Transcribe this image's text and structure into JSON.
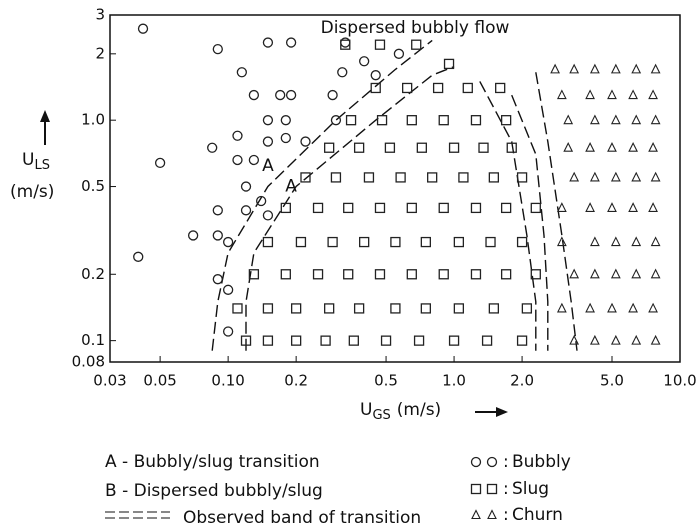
{
  "chart_data": {
    "type": "scatter",
    "title": "Dispersed  bubbly flow",
    "x_label": {
      "main": "U",
      "sub": "GS",
      "unit": "(m/s)"
    },
    "y_label": {
      "main": "U",
      "sub": "LS",
      "unit": "(m/s)"
    },
    "log_x": true,
    "log_y": true,
    "xlim": [
      0.03,
      10
    ],
    "ylim": [
      0.08,
      3
    ],
    "xticks": [
      0.03,
      0.05,
      {
        "value": 0.1,
        "label": "0.10"
      },
      0.2,
      0.5,
      {
        "value": 1,
        "label": "1.0"
      },
      {
        "value": 2,
        "label": "2.0"
      },
      {
        "value": 5,
        "label": "5.0"
      },
      {
        "value": 10,
        "label": "10.0"
      }
    ],
    "yticks": [
      {
        "value": 0.08,
        "label": "0.08"
      },
      0.1,
      0.2,
      0.5,
      {
        "value": 1,
        "label": "1.0"
      },
      2,
      3
    ],
    "legend_separator": ":",
    "series": [
      {
        "name": "Bubbly",
        "marker": "circle",
        "color": "#222",
        "x": [
          0.042,
          0.05,
          0.04,
          0.09,
          0.085,
          0.115,
          0.15,
          0.13,
          0.11,
          0.11,
          0.09,
          0.07,
          0.09,
          0.19,
          0.33,
          0.17,
          0.19,
          0.18,
          0.15,
          0.18,
          0.15,
          0.29,
          0.32,
          0.4,
          0.45,
          0.13,
          0.12,
          0.12,
          0.14,
          0.1,
          0.22,
          0.3,
          0.57,
          0.1,
          0.09,
          0.1,
          0.15
        ],
        "values": [
          2.6,
          0.64,
          0.24,
          2.1,
          0.75,
          1.65,
          2.25,
          1.3,
          0.85,
          0.66,
          0.39,
          0.3,
          0.3,
          2.25,
          2.25,
          1.3,
          1.3,
          1.0,
          1.0,
          0.83,
          0.8,
          1.3,
          1.65,
          1.85,
          1.6,
          0.66,
          0.5,
          0.39,
          0.43,
          0.28,
          0.8,
          1.0,
          2.0,
          0.11,
          0.19,
          0.17,
          0.37
        ]
      },
      {
        "name": "Slug",
        "marker": "square",
        "color": "#222",
        "x": [
          0.12,
          0.15,
          0.2,
          0.27,
          0.36,
          0.5,
          0.7,
          1.0,
          1.4,
          2.0,
          0.11,
          0.15,
          0.2,
          0.28,
          0.38,
          0.55,
          0.75,
          1.05,
          1.5,
          2.1,
          0.13,
          0.18,
          0.25,
          0.34,
          0.47,
          0.65,
          0.9,
          1.25,
          1.7,
          2.3,
          0.15,
          0.21,
          0.29,
          0.4,
          0.55,
          0.75,
          1.05,
          1.45,
          2.0,
          0.18,
          0.25,
          0.34,
          0.47,
          0.65,
          0.9,
          1.25,
          1.7,
          2.3,
          0.22,
          0.3,
          0.42,
          0.58,
          0.8,
          1.1,
          1.5,
          2.0,
          0.28,
          0.38,
          0.52,
          0.72,
          1.0,
          1.35,
          1.8,
          0.35,
          0.48,
          0.65,
          0.9,
          1.25,
          1.7,
          0.45,
          0.62,
          0.85,
          1.15,
          1.6,
          0.33,
          0.47,
          0.68,
          0.95
        ],
        "values": [
          0.1,
          0.1,
          0.1,
          0.1,
          0.1,
          0.1,
          0.1,
          0.1,
          0.1,
          0.1,
          0.14,
          0.14,
          0.14,
          0.14,
          0.14,
          0.14,
          0.14,
          0.14,
          0.14,
          0.14,
          0.2,
          0.2,
          0.2,
          0.2,
          0.2,
          0.2,
          0.2,
          0.2,
          0.2,
          0.2,
          0.28,
          0.28,
          0.28,
          0.28,
          0.28,
          0.28,
          0.28,
          0.28,
          0.28,
          0.4,
          0.4,
          0.4,
          0.4,
          0.4,
          0.4,
          0.4,
          0.4,
          0.4,
          0.55,
          0.55,
          0.55,
          0.55,
          0.55,
          0.55,
          0.55,
          0.55,
          0.75,
          0.75,
          0.75,
          0.75,
          0.75,
          0.75,
          0.75,
          1.0,
          1.0,
          1.0,
          1.0,
          1.0,
          1.0,
          1.4,
          1.4,
          1.4,
          1.4,
          1.4,
          2.2,
          2.2,
          2.2,
          1.8
        ]
      },
      {
        "name": "Churn",
        "marker": "triangle",
        "color": "#222",
        "x": [
          2.8,
          3.4,
          4.2,
          5.2,
          6.4,
          7.8,
          3.0,
          4.0,
          5.0,
          6.2,
          7.6,
          3.2,
          4.2,
          5.2,
          6.4,
          7.8,
          3.2,
          4.0,
          5.0,
          6.2,
          7.6,
          3.4,
          4.2,
          5.2,
          6.4,
          7.8,
          3.0,
          4.0,
          5.0,
          6.2,
          7.6,
          3.0,
          4.2,
          5.2,
          6.4,
          7.8,
          3.4,
          4.2,
          5.2,
          6.4,
          7.8,
          3.0,
          4.0,
          5.0,
          6.2,
          7.6,
          3.4,
          4.2,
          5.2,
          6.4,
          7.8
        ],
        "values": [
          1.7,
          1.7,
          1.7,
          1.7,
          1.7,
          1.7,
          1.3,
          1.3,
          1.3,
          1.3,
          1.3,
          1.0,
          1.0,
          1.0,
          1.0,
          1.0,
          0.75,
          0.75,
          0.75,
          0.75,
          0.75,
          0.55,
          0.55,
          0.55,
          0.55,
          0.55,
          0.4,
          0.4,
          0.4,
          0.4,
          0.4,
          0.28,
          0.28,
          0.28,
          0.28,
          0.28,
          0.2,
          0.2,
          0.2,
          0.2,
          0.2,
          0.14,
          0.14,
          0.14,
          0.14,
          0.14,
          0.1,
          0.1,
          0.1,
          0.1,
          0.1
        ]
      }
    ],
    "curves": [
      {
        "x": [
          0.085,
          0.09,
          0.1,
          0.15,
          0.3,
          0.55,
          0.8
        ],
        "values": [
          0.09,
          0.15,
          0.25,
          0.5,
          1.0,
          1.7,
          2.3
        ]
      },
      {
        "x": [
          0.12,
          0.12,
          0.13,
          0.2,
          0.45,
          0.8,
          1.0
        ],
        "values": [
          0.09,
          0.15,
          0.25,
          0.5,
          1.0,
          1.6,
          1.75
        ]
      },
      {
        "x": [
          1.3,
          1.8,
          2.1,
          2.3,
          2.3
        ],
        "values": [
          1.5,
          0.8,
          0.3,
          0.15,
          0.09
        ]
      },
      {
        "x": [
          1.8,
          2.3,
          2.5,
          2.6,
          2.6
        ],
        "values": [
          1.3,
          0.7,
          0.3,
          0.15,
          0.09
        ]
      },
      {
        "x": [
          2.3,
          2.6,
          3.0,
          3.3,
          3.5
        ],
        "values": [
          1.65,
          0.8,
          0.3,
          0.15,
          0.09
        ]
      }
    ],
    "annotations": [
      {
        "text": "A",
        "x": 0.15,
        "y": 0.62
      },
      {
        "text": "A",
        "x": 0.19,
        "y": 0.5
      }
    ],
    "notes": [
      "A - Bubbly/slug transition",
      "B - Dispersed bubbly/slug",
      "Observed band of transition"
    ]
  }
}
